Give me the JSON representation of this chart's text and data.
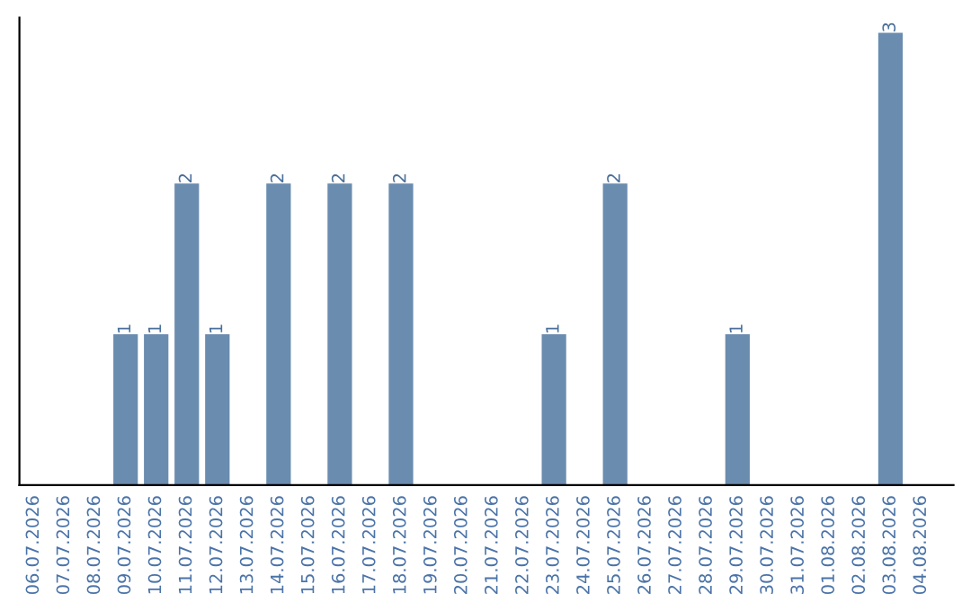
{
  "chart_data": {
    "type": "bar",
    "categories": [
      "06.07.2026",
      "07.07.2026",
      "08.07.2026",
      "09.07.2026",
      "10.07.2026",
      "11.07.2026",
      "12.07.2026",
      "13.07.2026",
      "14.07.2026",
      "15.07.2026",
      "16.07.2026",
      "17.07.2026",
      "18.07.2026",
      "19.07.2026",
      "20.07.2026",
      "21.07.2026",
      "22.07.2026",
      "23.07.2026",
      "24.07.2026",
      "25.07.2026",
      "26.07.2026",
      "27.07.2026",
      "28.07.2026",
      "29.07.2026",
      "30.07.2026",
      "31.07.2026",
      "01.08.2026",
      "02.08.2026",
      "03.08.2026",
      "04.08.2026"
    ],
    "values": [
      0,
      0,
      0,
      1,
      1,
      2,
      1,
      0,
      2,
      0,
      2,
      0,
      2,
      0,
      0,
      0,
      0,
      1,
      0,
      2,
      0,
      0,
      0,
      1,
      0,
      0,
      0,
      0,
      3,
      0
    ],
    "value_labels": [
      null,
      null,
      null,
      "1",
      "1",
      "2",
      "1",
      null,
      "2",
      null,
      "2",
      null,
      "2",
      null,
      null,
      null,
      null,
      "1",
      null,
      "2",
      null,
      null,
      null,
      "1",
      null,
      null,
      null,
      null,
      "3",
      null
    ],
    "color": "#6a8caf",
    "ylim": [
      0,
      3.1
    ],
    "tick_labels": "x",
    "grid": false
  }
}
